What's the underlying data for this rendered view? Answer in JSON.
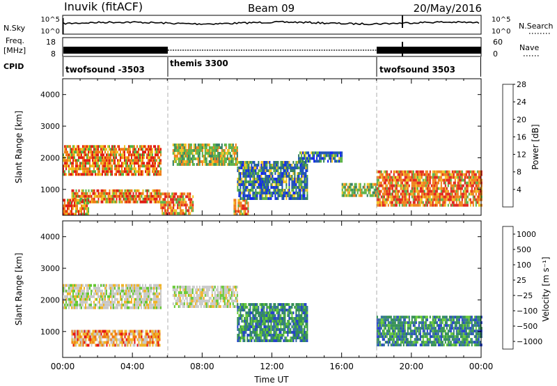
{
  "header": {
    "station": "Inuvik (fitACF)",
    "beam": "Beam 09",
    "date": "20/May/2016"
  },
  "noise_panel": {
    "label": "N.Sky",
    "right_label": "N.Search",
    "left_ticks": [
      "10^5",
      "10^0"
    ],
    "right_ticks": [
      "10^5",
      "10^0"
    ]
  },
  "freq_panel": {
    "label_top": "Freq.",
    "label_bottom": "[MHz]",
    "right_label": "Nave",
    "left_ticks": [
      "18",
      "8"
    ],
    "right_ticks": [
      "60",
      "0"
    ]
  },
  "cpid": {
    "label": "CPID",
    "segments": [
      {
        "name": "twofsound -3503",
        "start": 0,
        "end": 6
      },
      {
        "name": "themis 3300",
        "start": 6,
        "end": 18
      },
      {
        "name": "twofsound 3503",
        "start": 18,
        "end": 24
      }
    ]
  },
  "chart_data": [
    {
      "type": "heatmap",
      "quantity": "Power",
      "ylabel": "Slant Range [km]",
      "yticks": [
        "1000",
        "2000",
        "3000",
        "4000"
      ],
      "ylim": [
        180,
        4500
      ],
      "xlim": [
        0,
        24
      ],
      "colorbar": {
        "label": "Power [dB]",
        "ticks": [
          "4",
          "8",
          "12",
          "16",
          "20",
          "24",
          "28"
        ],
        "colors": [
          "#0a1ef0",
          "#1b4fb4",
          "#2e7d5a",
          "#57b043",
          "#f0c21e",
          "#f07d14",
          "#e01e14"
        ]
      },
      "regions": [
        {
          "x": [
            0.0,
            5.6
          ],
          "y": [
            1450,
            2400
          ],
          "level": "high"
        },
        {
          "x": [
            0.5,
            5.6
          ],
          "y": [
            600,
            1000
          ],
          "level": "high"
        },
        {
          "x": [
            0.0,
            1.5
          ],
          "y": [
            200,
            700
          ],
          "level": "high"
        },
        {
          "x": [
            6.3,
            10.0
          ],
          "y": [
            1750,
            2450
          ],
          "level": "mid"
        },
        {
          "x": [
            5.6,
            7.5
          ],
          "y": [
            200,
            900
          ],
          "level": "high"
        },
        {
          "x": [
            9.8,
            10.6
          ],
          "y": [
            200,
            700
          ],
          "level": "high"
        },
        {
          "x": [
            10.0,
            14.0
          ],
          "y": [
            700,
            1900
          ],
          "level": "low"
        },
        {
          "x": [
            13.5,
            16.0
          ],
          "y": [
            1850,
            2200
          ],
          "level": "low"
        },
        {
          "x": [
            16.0,
            18.0
          ],
          "y": [
            800,
            1200
          ],
          "level": "mid"
        },
        {
          "x": [
            18.0,
            24.0
          ],
          "y": [
            500,
            1600
          ],
          "level": "high"
        }
      ]
    },
    {
      "type": "heatmap",
      "quantity": "Velocity",
      "xlabel": "Time UT",
      "ylabel": "Slant Range [km]",
      "xticks": [
        "00:00",
        "04:00",
        "08:00",
        "12:00",
        "16:00",
        "20:00",
        "00:00"
      ],
      "yticks": [
        "1000",
        "2000",
        "3000",
        "4000"
      ],
      "ylim": [
        180,
        4500
      ],
      "xlim": [
        0,
        24
      ],
      "colorbar": {
        "label": "Velocity [m s⁻¹]",
        "ticks": [
          "1000",
          "500",
          "100",
          "25",
          "−25",
          "−100",
          "−500",
          "−1000"
        ],
        "colors": [
          "#1e3cc8",
          "#2e6e9a",
          "#2e8c50",
          "#64c832",
          "#c8c8c8",
          "#f0b428",
          "#f07814",
          "#e61414"
        ]
      },
      "regions": [
        {
          "x": [
            0.0,
            5.6
          ],
          "y": [
            1750,
            2500
          ],
          "level": "ground"
        },
        {
          "x": [
            0.5,
            5.6
          ],
          "y": [
            600,
            1050
          ],
          "level": "away"
        },
        {
          "x": [
            6.3,
            10.0
          ],
          "y": [
            1800,
            2450
          ],
          "level": "ground"
        },
        {
          "x": [
            10.0,
            14.0
          ],
          "y": [
            700,
            1900
          ],
          "level": "toward"
        },
        {
          "x": [
            18.0,
            24.0
          ],
          "y": [
            600,
            1500
          ],
          "level": "toward"
        }
      ]
    }
  ]
}
